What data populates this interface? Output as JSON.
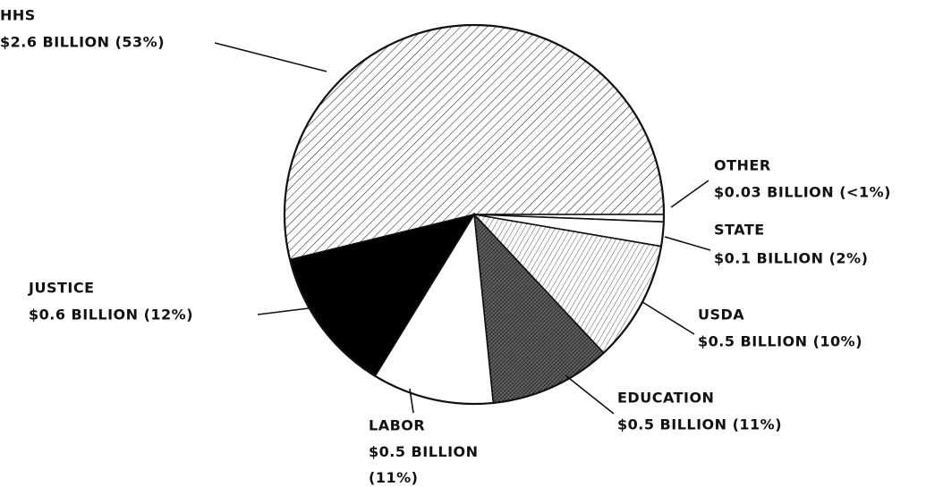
{
  "chart_data": {
    "type": "pie",
    "categories": [
      "HHS",
      "OTHER",
      "STATE",
      "USDA",
      "EDUCATION",
      "LABOR",
      "JUSTICE"
    ],
    "values": [
      2.6,
      0.03,
      0.1,
      0.5,
      0.5,
      0.5,
      0.6
    ],
    "value_labels": [
      "$2.6 BILLION (53%)",
      "$0.03 BILLION (<1%)",
      "$0.1 BILLION (2%)",
      "$0.5 BILLION (10%)",
      "$0.5 BILLION (11%)",
      "$0.5 BILLION (11%)",
      "$0.6 BILLION (12%)"
    ]
  }
}
